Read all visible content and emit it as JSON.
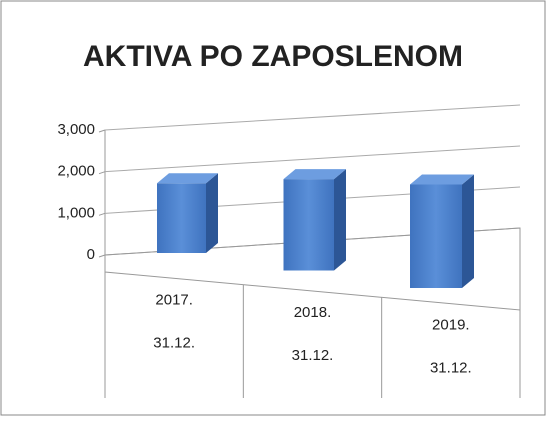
{
  "chart_data": {
    "type": "bar3d",
    "title": "AKTIVA PO ZAPOSLENOM",
    "categories": [
      [
        "2017.",
        "31.12."
      ],
      [
        "2018.",
        "31.12."
      ],
      [
        "2019.",
        "31.12."
      ]
    ],
    "values": [
      1700,
      2100,
      2250
    ],
    "color": "#4a7fcb",
    "ylim": [
      0,
      3000
    ],
    "yticks": [
      0,
      {
        "value": 1000,
        "label": "1,000"
      },
      {
        "value": 2000,
        "label": "2,000"
      },
      {
        "value": 3000,
        "label": "3,000"
      }
    ],
    "grid": true
  }
}
